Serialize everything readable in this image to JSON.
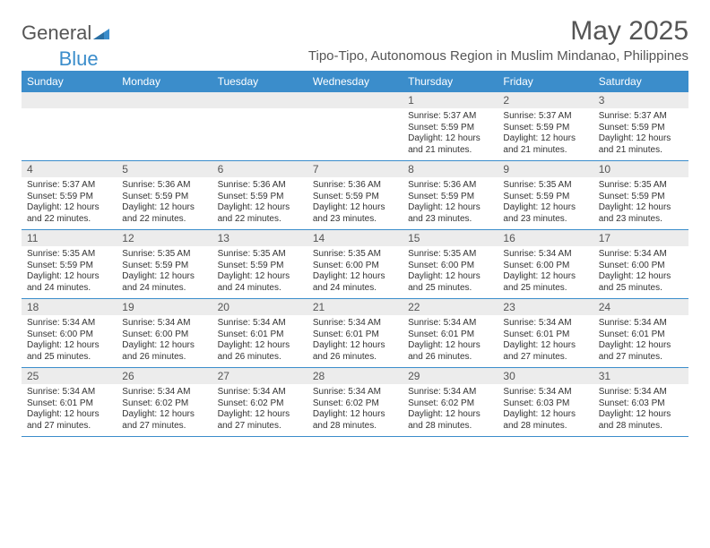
{
  "brand": {
    "general": "General",
    "blue": "Blue"
  },
  "title": "May 2025",
  "subtitle": "Tipo-Tipo, Autonomous Region in Muslim Mindanao, Philippines",
  "colors": {
    "header_bg": "#3b8dcb",
    "header_text": "#ffffff",
    "daynum_bg": "#ececec",
    "border": "#3b8dcb",
    "text": "#333333"
  },
  "days_of_week": [
    "Sunday",
    "Monday",
    "Tuesday",
    "Wednesday",
    "Thursday",
    "Friday",
    "Saturday"
  ],
  "weeks": [
    [
      {
        "blank": true
      },
      {
        "blank": true
      },
      {
        "blank": true
      },
      {
        "blank": true
      },
      {
        "day": "1",
        "sunrise": "Sunrise: 5:37 AM",
        "sunset": "Sunset: 5:59 PM",
        "daylight": "Daylight: 12 hours and 21 minutes."
      },
      {
        "day": "2",
        "sunrise": "Sunrise: 5:37 AM",
        "sunset": "Sunset: 5:59 PM",
        "daylight": "Daylight: 12 hours and 21 minutes."
      },
      {
        "day": "3",
        "sunrise": "Sunrise: 5:37 AM",
        "sunset": "Sunset: 5:59 PM",
        "daylight": "Daylight: 12 hours and 21 minutes."
      }
    ],
    [
      {
        "day": "4",
        "sunrise": "Sunrise: 5:37 AM",
        "sunset": "Sunset: 5:59 PM",
        "daylight": "Daylight: 12 hours and 22 minutes."
      },
      {
        "day": "5",
        "sunrise": "Sunrise: 5:36 AM",
        "sunset": "Sunset: 5:59 PM",
        "daylight": "Daylight: 12 hours and 22 minutes."
      },
      {
        "day": "6",
        "sunrise": "Sunrise: 5:36 AM",
        "sunset": "Sunset: 5:59 PM",
        "daylight": "Daylight: 12 hours and 22 minutes."
      },
      {
        "day": "7",
        "sunrise": "Sunrise: 5:36 AM",
        "sunset": "Sunset: 5:59 PM",
        "daylight": "Daylight: 12 hours and 23 minutes."
      },
      {
        "day": "8",
        "sunrise": "Sunrise: 5:36 AM",
        "sunset": "Sunset: 5:59 PM",
        "daylight": "Daylight: 12 hours and 23 minutes."
      },
      {
        "day": "9",
        "sunrise": "Sunrise: 5:35 AM",
        "sunset": "Sunset: 5:59 PM",
        "daylight": "Daylight: 12 hours and 23 minutes."
      },
      {
        "day": "10",
        "sunrise": "Sunrise: 5:35 AM",
        "sunset": "Sunset: 5:59 PM",
        "daylight": "Daylight: 12 hours and 23 minutes."
      }
    ],
    [
      {
        "day": "11",
        "sunrise": "Sunrise: 5:35 AM",
        "sunset": "Sunset: 5:59 PM",
        "daylight": "Daylight: 12 hours and 24 minutes."
      },
      {
        "day": "12",
        "sunrise": "Sunrise: 5:35 AM",
        "sunset": "Sunset: 5:59 PM",
        "daylight": "Daylight: 12 hours and 24 minutes."
      },
      {
        "day": "13",
        "sunrise": "Sunrise: 5:35 AM",
        "sunset": "Sunset: 5:59 PM",
        "daylight": "Daylight: 12 hours and 24 minutes."
      },
      {
        "day": "14",
        "sunrise": "Sunrise: 5:35 AM",
        "sunset": "Sunset: 6:00 PM",
        "daylight": "Daylight: 12 hours and 24 minutes."
      },
      {
        "day": "15",
        "sunrise": "Sunrise: 5:35 AM",
        "sunset": "Sunset: 6:00 PM",
        "daylight": "Daylight: 12 hours and 25 minutes."
      },
      {
        "day": "16",
        "sunrise": "Sunrise: 5:34 AM",
        "sunset": "Sunset: 6:00 PM",
        "daylight": "Daylight: 12 hours and 25 minutes."
      },
      {
        "day": "17",
        "sunrise": "Sunrise: 5:34 AM",
        "sunset": "Sunset: 6:00 PM",
        "daylight": "Daylight: 12 hours and 25 minutes."
      }
    ],
    [
      {
        "day": "18",
        "sunrise": "Sunrise: 5:34 AM",
        "sunset": "Sunset: 6:00 PM",
        "daylight": "Daylight: 12 hours and 25 minutes."
      },
      {
        "day": "19",
        "sunrise": "Sunrise: 5:34 AM",
        "sunset": "Sunset: 6:00 PM",
        "daylight": "Daylight: 12 hours and 26 minutes."
      },
      {
        "day": "20",
        "sunrise": "Sunrise: 5:34 AM",
        "sunset": "Sunset: 6:01 PM",
        "daylight": "Daylight: 12 hours and 26 minutes."
      },
      {
        "day": "21",
        "sunrise": "Sunrise: 5:34 AM",
        "sunset": "Sunset: 6:01 PM",
        "daylight": "Daylight: 12 hours and 26 minutes."
      },
      {
        "day": "22",
        "sunrise": "Sunrise: 5:34 AM",
        "sunset": "Sunset: 6:01 PM",
        "daylight": "Daylight: 12 hours and 26 minutes."
      },
      {
        "day": "23",
        "sunrise": "Sunrise: 5:34 AM",
        "sunset": "Sunset: 6:01 PM",
        "daylight": "Daylight: 12 hours and 27 minutes."
      },
      {
        "day": "24",
        "sunrise": "Sunrise: 5:34 AM",
        "sunset": "Sunset: 6:01 PM",
        "daylight": "Daylight: 12 hours and 27 minutes."
      }
    ],
    [
      {
        "day": "25",
        "sunrise": "Sunrise: 5:34 AM",
        "sunset": "Sunset: 6:01 PM",
        "daylight": "Daylight: 12 hours and 27 minutes."
      },
      {
        "day": "26",
        "sunrise": "Sunrise: 5:34 AM",
        "sunset": "Sunset: 6:02 PM",
        "daylight": "Daylight: 12 hours and 27 minutes."
      },
      {
        "day": "27",
        "sunrise": "Sunrise: 5:34 AM",
        "sunset": "Sunset: 6:02 PM",
        "daylight": "Daylight: 12 hours and 27 minutes."
      },
      {
        "day": "28",
        "sunrise": "Sunrise: 5:34 AM",
        "sunset": "Sunset: 6:02 PM",
        "daylight": "Daylight: 12 hours and 28 minutes."
      },
      {
        "day": "29",
        "sunrise": "Sunrise: 5:34 AM",
        "sunset": "Sunset: 6:02 PM",
        "daylight": "Daylight: 12 hours and 28 minutes."
      },
      {
        "day": "30",
        "sunrise": "Sunrise: 5:34 AM",
        "sunset": "Sunset: 6:03 PM",
        "daylight": "Daylight: 12 hours and 28 minutes."
      },
      {
        "day": "31",
        "sunrise": "Sunrise: 5:34 AM",
        "sunset": "Sunset: 6:03 PM",
        "daylight": "Daylight: 12 hours and 28 minutes."
      }
    ]
  ]
}
